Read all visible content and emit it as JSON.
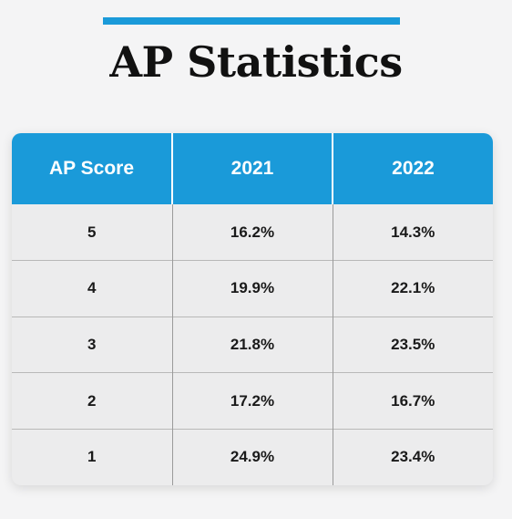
{
  "colors": {
    "accent": "#1a9ad9",
    "header_text": "#ffffff",
    "body_bg": "#ececed",
    "text": "#1a1a1a"
  },
  "chart_data": {
    "type": "table",
    "title": "AP Statistics",
    "columns": [
      "AP Score",
      "2021",
      "2022"
    ],
    "rows": [
      [
        "5",
        "16.2%",
        "14.3%"
      ],
      [
        "4",
        "19.9%",
        "22.1%"
      ],
      [
        "3",
        "21.8%",
        "23.5%"
      ],
      [
        "2",
        "17.2%",
        "16.7%"
      ],
      [
        "1",
        "24.9%",
        "23.4%"
      ]
    ]
  }
}
